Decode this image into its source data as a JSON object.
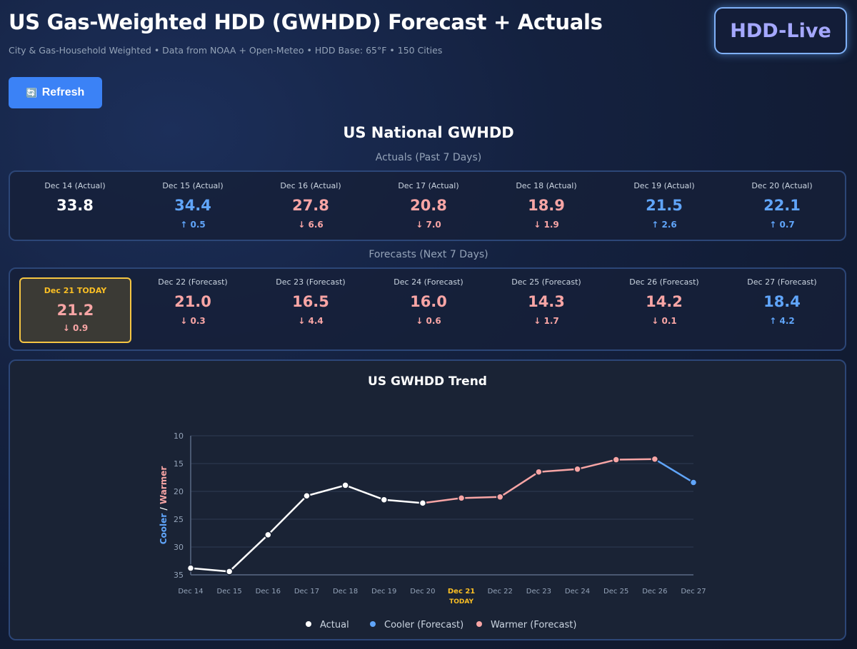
{
  "header": {
    "title": "US Gas-Weighted HDD (GWHDD) Forecast + Actuals",
    "subtitle": "City & Gas-Household Weighted • Data from NOAA + Open-Meteo • HDD Base: 65°F • 150 Cities",
    "brand": "HDD-Live"
  },
  "toolbar": {
    "refresh_icon": "🔄",
    "refresh_label": "Refresh"
  },
  "national": {
    "title": "US National GWHDD",
    "actuals_label": "Actuals (Past 7 Days)",
    "forecasts_label": "Forecasts (Next 7 Days)"
  },
  "colors": {
    "actual": "#ffffff",
    "cooler": "#60a5fa",
    "warmer": "#f8a5a5",
    "today": "#fbbf24"
  },
  "actuals": [
    {
      "label": "Dec 14 (Actual)",
      "value": "33.8",
      "change": "",
      "color": "white"
    },
    {
      "label": "Dec 15 (Actual)",
      "value": "34.4",
      "change": "↑ 0.5",
      "color": "blue"
    },
    {
      "label": "Dec 16 (Actual)",
      "value": "27.8",
      "change": "↓ 6.6",
      "color": "red"
    },
    {
      "label": "Dec 17 (Actual)",
      "value": "20.8",
      "change": "↓ 7.0",
      "color": "red"
    },
    {
      "label": "Dec 18 (Actual)",
      "value": "18.9",
      "change": "↓ 1.9",
      "color": "red"
    },
    {
      "label": "Dec 19 (Actual)",
      "value": "21.5",
      "change": "↑ 2.6",
      "color": "blue"
    },
    {
      "label": "Dec 20 (Actual)",
      "value": "22.1",
      "change": "↑ 0.7",
      "color": "blue"
    }
  ],
  "today": {
    "label": "Dec 21 TODAY",
    "value": "21.2",
    "change": "↓ 0.9"
  },
  "forecasts": [
    {
      "label": "Dec 22 (Forecast)",
      "value": "21.0",
      "change": "↓ 0.3",
      "color": "red"
    },
    {
      "label": "Dec 23 (Forecast)",
      "value": "16.5",
      "change": "↓ 4.4",
      "color": "red"
    },
    {
      "label": "Dec 24 (Forecast)",
      "value": "16.0",
      "change": "↓ 0.6",
      "color": "red"
    },
    {
      "label": "Dec 25 (Forecast)",
      "value": "14.3",
      "change": "↓ 1.7",
      "color": "red"
    },
    {
      "label": "Dec 26 (Forecast)",
      "value": "14.2",
      "change": "↓ 0.1",
      "color": "red"
    },
    {
      "label": "Dec 27 (Forecast)",
      "value": "18.4",
      "change": "↑ 4.2",
      "color": "blue"
    }
  ],
  "chart_data": {
    "type": "line",
    "title": "US GWHDD Trend",
    "ylabel_cooler": "Cooler",
    "ylabel_sep": " / ",
    "ylabel_warmer": "Warmer",
    "y_inverted": true,
    "ylim": [
      10,
      35
    ],
    "yticks": [
      10,
      15,
      20,
      25,
      30,
      35
    ],
    "categories": [
      "Dec 14",
      "Dec 15",
      "Dec 16",
      "Dec 17",
      "Dec 18",
      "Dec 19",
      "Dec 20",
      "Dec 21",
      "Dec 22",
      "Dec 23",
      "Dec 24",
      "Dec 25",
      "Dec 26",
      "Dec 27"
    ],
    "today_index": 7,
    "today_sublabel": "TODAY",
    "values": [
      33.8,
      34.4,
      27.8,
      20.8,
      18.9,
      21.5,
      22.1,
      21.2,
      21.0,
      16.5,
      16.0,
      14.3,
      14.2,
      18.4
    ],
    "point_types": [
      "actual",
      "actual",
      "actual",
      "actual",
      "actual",
      "actual",
      "actual",
      "warmer",
      "warmer",
      "warmer",
      "warmer",
      "warmer",
      "warmer",
      "cooler"
    ],
    "legend": [
      {
        "key": "actual",
        "label": "Actual"
      },
      {
        "key": "cooler",
        "label": "Cooler (Forecast)"
      },
      {
        "key": "warmer",
        "label": "Warmer (Forecast)"
      }
    ]
  }
}
